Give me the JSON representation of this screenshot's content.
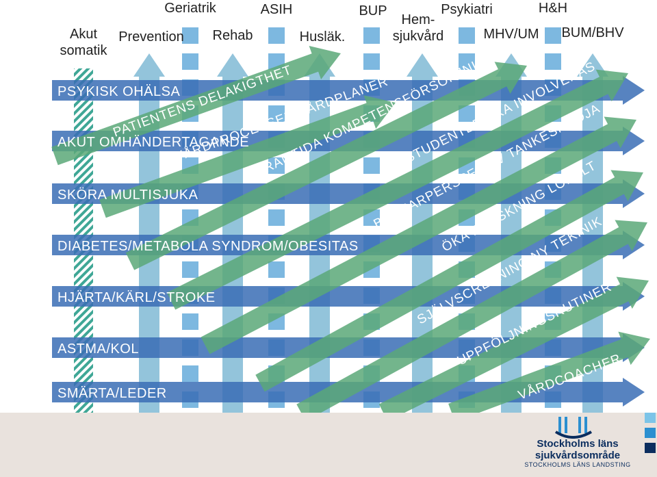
{
  "columns": [
    {
      "label": "Akut\nsomatik",
      "name": "akut-somatik"
    },
    {
      "label": "Prevention",
      "name": "prevention"
    },
    {
      "label": "Geriatrik",
      "name": "geriatrik"
    },
    {
      "label": "Rehab",
      "name": "rehab"
    },
    {
      "label": "ASIH",
      "name": "asih"
    },
    {
      "label": "Husläk.",
      "name": "huslak"
    },
    {
      "label": "BUP",
      "name": "bup"
    },
    {
      "label": "Hem-\nsjukvård",
      "name": "hemsjukvard"
    },
    {
      "label": "Psykiatri",
      "name": "psykiatri"
    },
    {
      "label": "MHV/UM",
      "name": "mhv-um"
    },
    {
      "label": "H&H",
      "name": "h-and-h"
    },
    {
      "label": "BUM/BHV",
      "name": "bum-bhv"
    }
  ],
  "rows": [
    "PSYKISK OHÄLSA",
    "AKUT OMHÄNDERTAGANDE",
    "SKÖRA MULTISJUKA",
    "DIABETES/METABOLA SYNDROM/OBESITAS",
    "HJÄRTA/KÄRL/STROKE",
    "ASTMA/KOL",
    "SMÄRTA/LEDER"
  ],
  "themes": [
    "PATIENTENS DELAKIGTHET",
    "VÅRDPROCESSER VÅRDPLANER",
    "FRAMTIDA KOMPETENSFÖRSÖRJNING",
    "STUDENTER SKA INVOLVERAS",
    "BRUKARPERSPEKTIV TANKESMEDJA",
    "ÖKA FORSKNING LOKALT",
    "SJÄLVSCREENING NY TEKINIK",
    "UPPFÖLJNINGSRUTINER",
    "VÅRDCOACHER"
  ],
  "logo": {
    "line1": "Stockholms läns",
    "line2": "sjukvårdsområde",
    "line3": "STOCKHOLMS LÄNS LANDSTING"
  },
  "colors": {
    "row_band": "#3a6db5",
    "column_band": "#8dc1d9",
    "column_squares": "#6fb0dd",
    "theme_arrow": "#5aa878",
    "hatch": "#3fa796",
    "footer": "#e9e2dd",
    "logo": "#0b2d5e",
    "logo_accent": "#2b8fd0",
    "logo_light": "#7cc4e8"
  }
}
